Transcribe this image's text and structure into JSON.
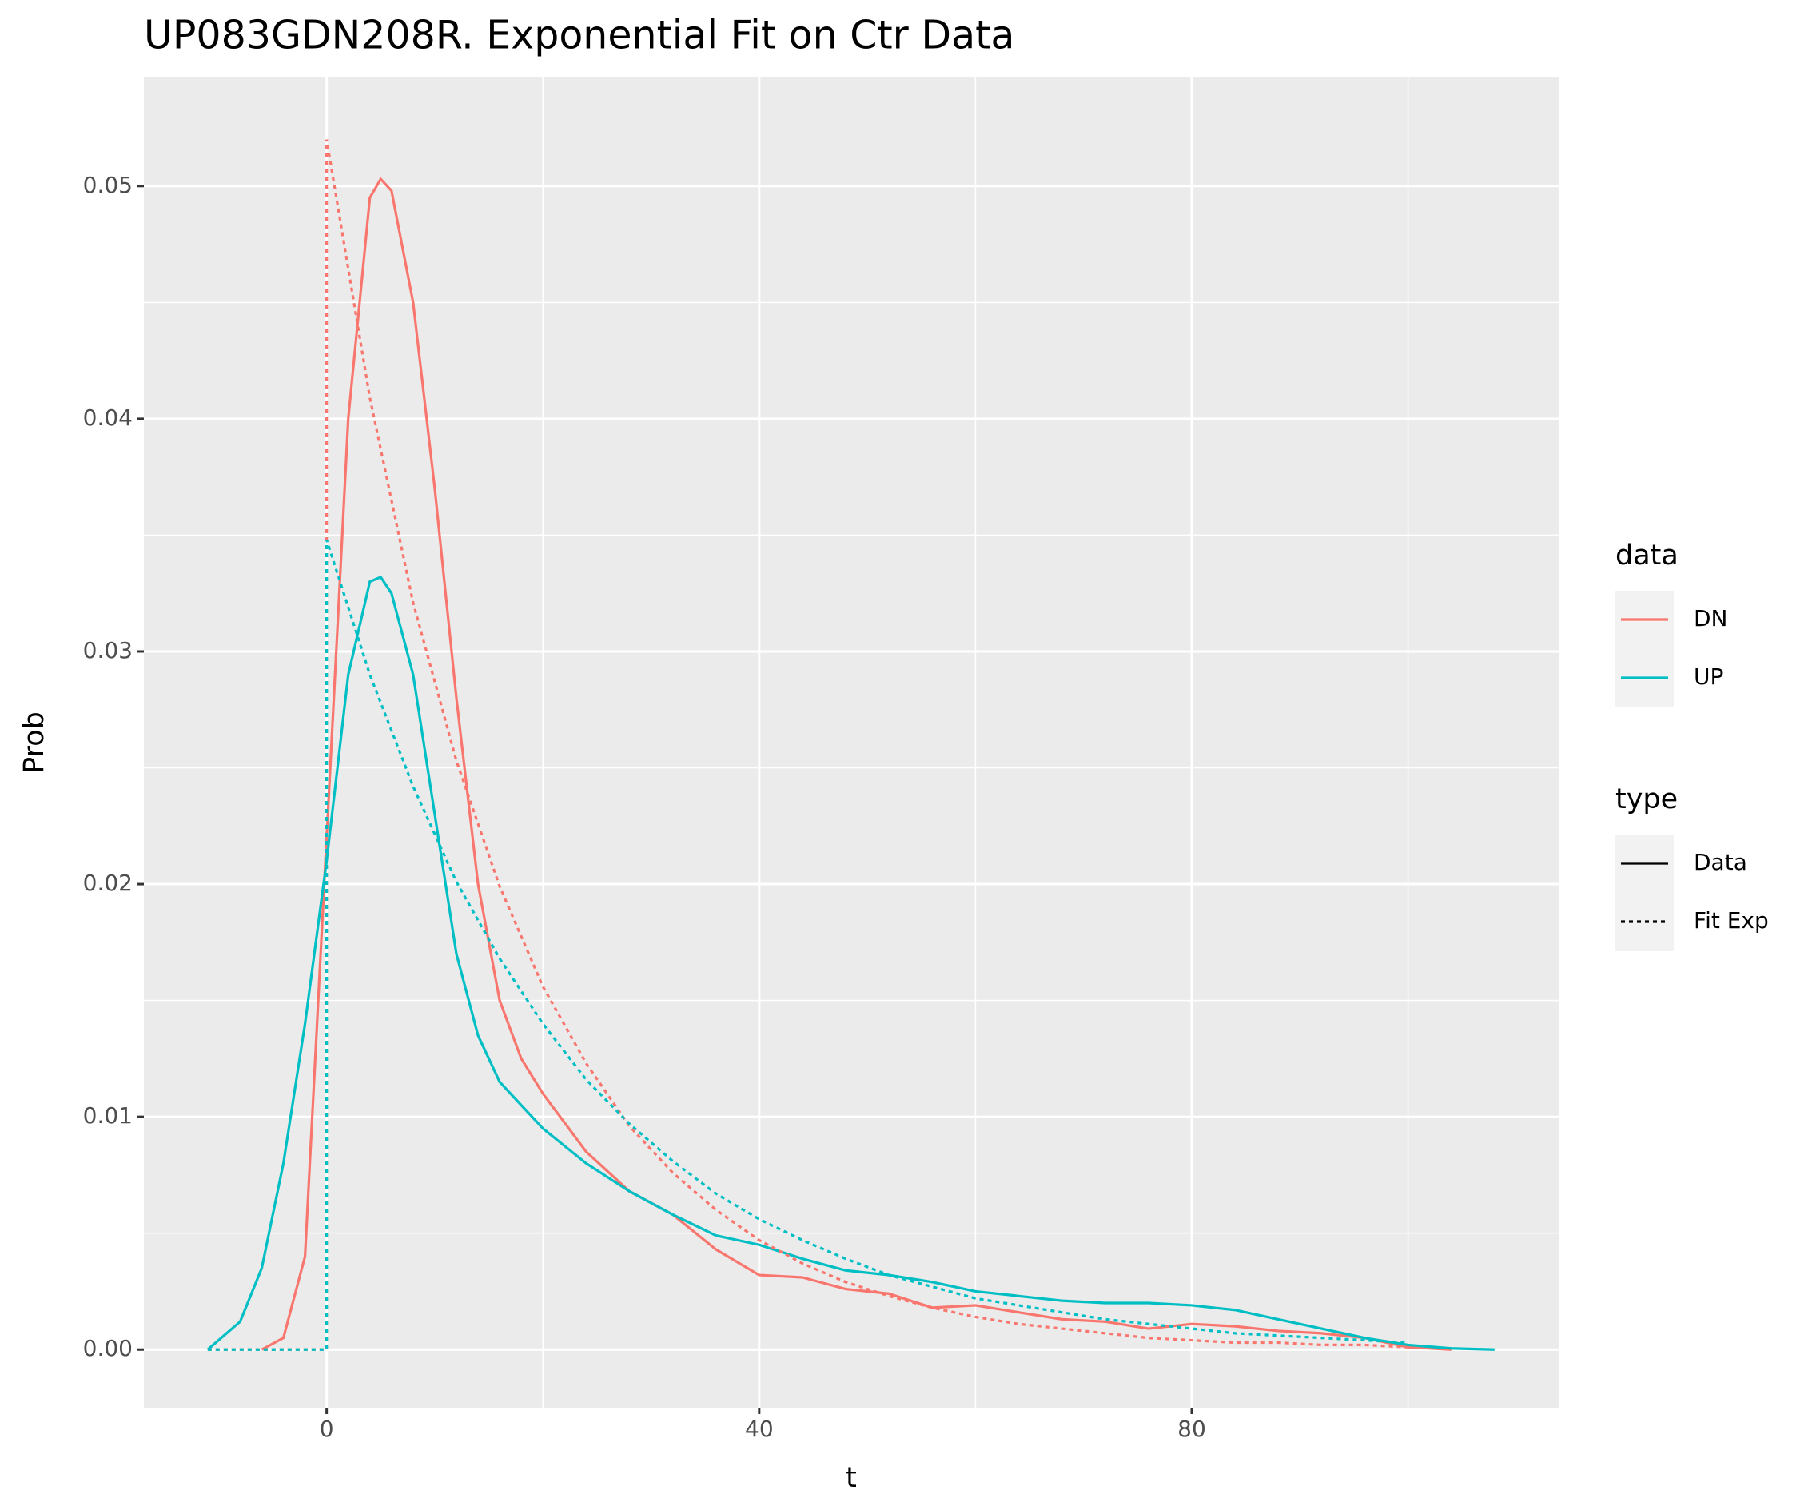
{
  "chart_data": {
    "type": "line",
    "title": "UP083GDN208R. Exponential Fit on Ctr Data",
    "x_label": "t",
    "y_label": "Prob",
    "xlim": [
      -16.9,
      114.0
    ],
    "ylim": [
      -0.0025,
      0.0547
    ],
    "xticks": [
      0,
      40,
      80
    ],
    "yticks": [
      {
        "value": 0,
        "label": "0.00"
      },
      {
        "value": 0.01,
        "label": "0.01"
      },
      {
        "value": 0.02,
        "label": "0.02"
      },
      {
        "value": 0.03,
        "label": "0.03"
      },
      {
        "value": 0.04,
        "label": "0.04"
      },
      {
        "value": 0.05,
        "label": "0.05"
      }
    ],
    "xminor": [
      20,
      60,
      100
    ],
    "yminor": [
      0.005,
      0.015,
      0.025,
      0.035,
      0.045
    ],
    "grid": true,
    "legend": [
      {
        "title": "data",
        "entries": [
          {
            "label": "DN",
            "color": "#F8766D"
          },
          {
            "label": "UP",
            "color": "#00BFC4"
          }
        ]
      },
      {
        "title": "type",
        "entries": [
          {
            "label": "Data",
            "dash": "solid"
          },
          {
            "label": "Fit Exp",
            "dash": "dotted"
          }
        ]
      }
    ],
    "series": [
      {
        "name": "DN",
        "linetype": "Data",
        "x": [
          -6,
          -4,
          -2,
          0,
          2,
          4,
          5,
          6,
          8,
          10,
          12,
          14,
          16,
          18,
          20,
          24,
          28,
          32,
          36,
          40,
          44,
          48,
          52,
          56,
          60,
          64,
          68,
          72,
          76,
          80,
          84,
          88,
          92,
          96,
          100,
          104
        ],
        "values": [
          0,
          0.0005,
          0.004,
          0.022,
          0.04,
          0.0495,
          0.0503,
          0.0498,
          0.045,
          0.037,
          0.028,
          0.02,
          0.015,
          0.0125,
          0.011,
          0.0085,
          0.0068,
          0.0058,
          0.0043,
          0.0032,
          0.0031,
          0.0026,
          0.0024,
          0.0018,
          0.0019,
          0.0016,
          0.0013,
          0.0012,
          0.0009,
          0.0011,
          0.001,
          0.0008,
          0.0007,
          0.0005,
          0.0001,
          0
        ]
      },
      {
        "name": "UP",
        "linetype": "Data",
        "x": [
          -11,
          -8,
          -6,
          -4,
          -2,
          0,
          2,
          4,
          5,
          6,
          8,
          10,
          12,
          14,
          16,
          20,
          24,
          28,
          32,
          36,
          40,
          44,
          48,
          52,
          56,
          60,
          64,
          68,
          72,
          76,
          80,
          84,
          88,
          92,
          96,
          100,
          104,
          108
        ],
        "values": [
          0,
          0.0012,
          0.0035,
          0.008,
          0.014,
          0.021,
          0.029,
          0.033,
          0.0332,
          0.0325,
          0.029,
          0.023,
          0.017,
          0.0135,
          0.0115,
          0.0095,
          0.008,
          0.0068,
          0.0058,
          0.0049,
          0.0045,
          0.0039,
          0.0034,
          0.0032,
          0.0029,
          0.0025,
          0.0023,
          0.0021,
          0.002,
          0.002,
          0.0019,
          0.0017,
          0.0013,
          0.0009,
          0.0005,
          0.0002,
          5e-05,
          0
        ]
      },
      {
        "name": "DN",
        "linetype": "Fit Exp",
        "x": [
          -11,
          0,
          0,
          4,
          8,
          12,
          16,
          20,
          24,
          28,
          32,
          36,
          40,
          44,
          48,
          52,
          56,
          60,
          64,
          68,
          72,
          76,
          80,
          84,
          88,
          92,
          96,
          100
        ],
        "values": [
          0,
          0,
          0.052,
          0.0409,
          0.0321,
          0.0253,
          0.0199,
          0.0156,
          0.0123,
          0.0096,
          0.0076,
          0.006,
          0.0047,
          0.0037,
          0.0029,
          0.0023,
          0.0018,
          0.0014,
          0.0011,
          0.0009,
          0.0007,
          0.0005,
          0.0004,
          0.0003,
          0.0003,
          0.0002,
          0.0002,
          0.0001
        ]
      },
      {
        "name": "UP",
        "linetype": "Fit Exp",
        "x": [
          -11,
          0,
          0,
          4,
          8,
          12,
          16,
          20,
          24,
          28,
          32,
          36,
          40,
          44,
          48,
          52,
          56,
          60,
          64,
          68,
          72,
          76,
          80,
          84,
          88,
          92,
          96,
          100
        ],
        "values": [
          0,
          0,
          0.0348,
          0.029,
          0.0242,
          0.0201,
          0.0168,
          0.014,
          0.0116,
          0.0097,
          0.0081,
          0.0067,
          0.0056,
          0.0047,
          0.0039,
          0.0032,
          0.0027,
          0.0022,
          0.0019,
          0.0016,
          0.0013,
          0.0011,
          0.0009,
          0.0007,
          0.0006,
          0.0005,
          0.0004,
          0.0003
        ]
      }
    ]
  }
}
